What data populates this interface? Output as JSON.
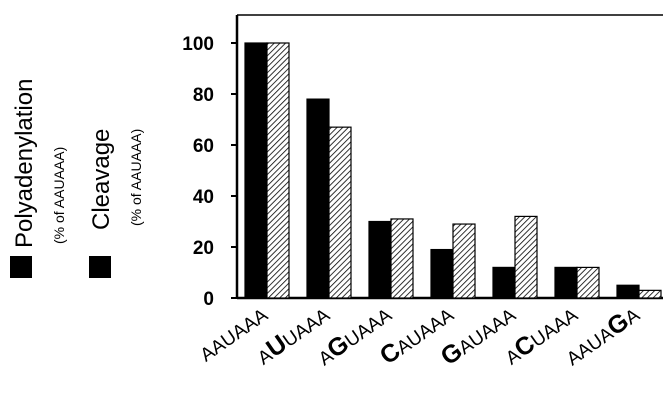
{
  "chart_data": {
    "type": "bar",
    "categories": [
      {
        "pre": "AAUAAA",
        "hl": "",
        "post": ""
      },
      {
        "pre": "A",
        "hl": "U",
        "post": "UAAA"
      },
      {
        "pre": "A",
        "hl": "G",
        "post": "UAAA"
      },
      {
        "pre": "",
        "hl": "C",
        "post": "AUAAA"
      },
      {
        "pre": "",
        "hl": "G",
        "post": "AUAAA"
      },
      {
        "pre": "A",
        "hl": "C",
        "post": "UAAA"
      },
      {
        "pre": "AAUA",
        "hl": "G",
        "post": "A"
      }
    ],
    "series": [
      {
        "name": "Polyadenylation",
        "sub": "(% of AAUAAA)",
        "fill": "solid",
        "values": [
          100,
          78,
          30,
          19,
          12,
          12,
          5
        ]
      },
      {
        "name": "Cleavage",
        "sub": "(% of AAUAAA)",
        "fill": "hatched",
        "values": [
          100,
          67,
          31,
          29,
          32,
          12,
          3
        ]
      }
    ],
    "yticks": [
      "0",
      "20",
      "40",
      "60",
      "80",
      "100"
    ],
    "ylim": [
      0,
      110
    ],
    "xlabel": "",
    "ylabel": "",
    "title": "",
    "legend_position": "left-vertical",
    "colors": {
      "solid": "#000000",
      "hatch": "#000000",
      "background": "#ffffff"
    }
  }
}
